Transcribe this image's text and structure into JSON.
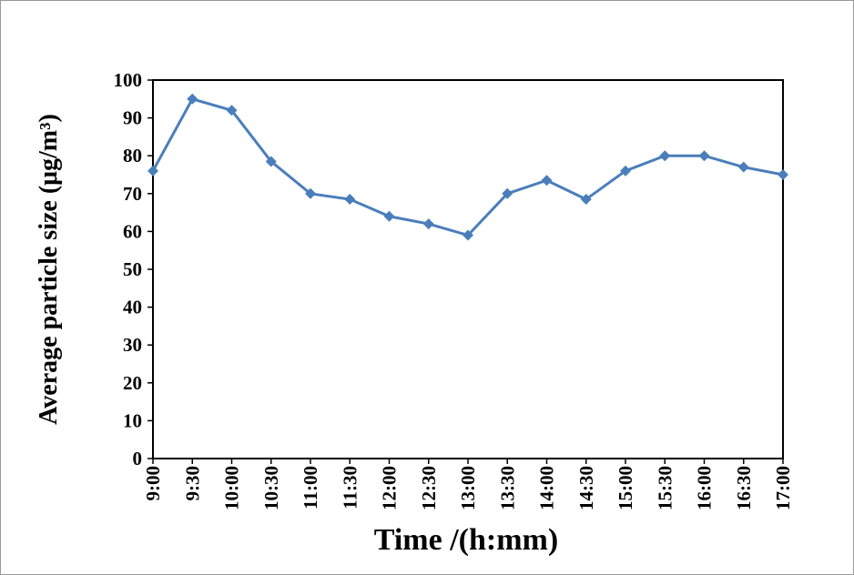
{
  "chart_data": {
    "type": "line",
    "x_label": "Time /(h:mm)",
    "y_label": "Average particle size (μg/m³)",
    "categories": [
      "9:00",
      "9:30",
      "10:00",
      "10:30",
      "11:00",
      "11:30",
      "12:00",
      "12:30",
      "13:00",
      "13:30",
      "14:00",
      "14:30",
      "15:00",
      "15:30",
      "16:00",
      "16:30",
      "17:00"
    ],
    "values": [
      76,
      95,
      92,
      78.5,
      70,
      68.5,
      64,
      62,
      59,
      70,
      73.5,
      68.5,
      76,
      80,
      80,
      77,
      75
    ],
    "color": "#4a7ebb",
    "ylim": [
      0,
      100
    ],
    "yticks": [
      0,
      10,
      20,
      30,
      40,
      50,
      60,
      70,
      80,
      90,
      100
    ],
    "grid": false
  }
}
